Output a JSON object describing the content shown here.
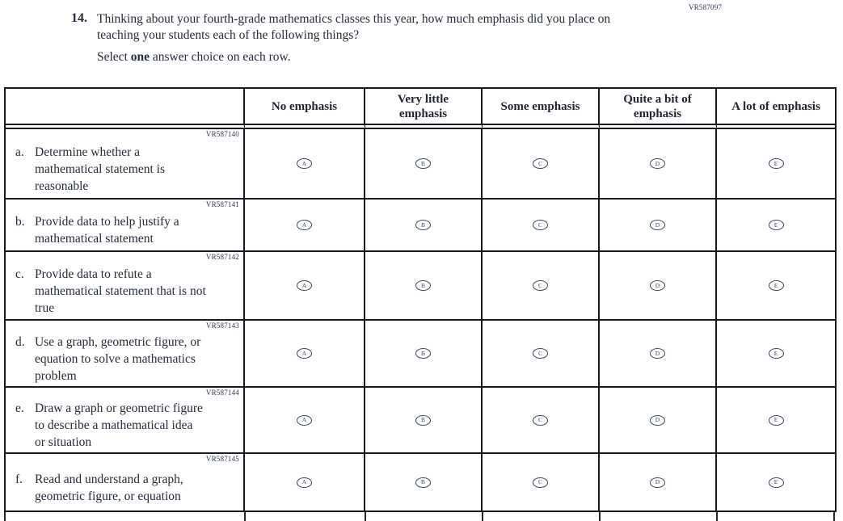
{
  "page": {
    "code": "VR587097"
  },
  "question": {
    "number": "14.",
    "text": "Thinking about your fourth-grade mathematics classes this year, how much emphasis did you place on teaching your students each of the following things?",
    "instruction_prefix": "Select ",
    "instruction_bold": "one",
    "instruction_suffix": " answer choice on each row."
  },
  "table": {
    "columns": [
      "No emphasis",
      "Very little emphasis",
      "Some emphasis",
      "Quite a bit of emphasis",
      "A lot of emphasis"
    ],
    "option_letters": [
      "A",
      "B",
      "C",
      "D",
      "E"
    ],
    "rows": [
      {
        "code": "VR587140",
        "label": "a.",
        "text": "Determine whether a mathematical statement is reasonable"
      },
      {
        "code": "VR587141",
        "label": "b.",
        "text": "Provide data to help justify a mathematical statement"
      },
      {
        "code": "VR587142",
        "label": "c.",
        "text": "Provide data to refute a mathematical statement that is not true"
      },
      {
        "code": "VR587143",
        "label": "d.",
        "text": "Use a graph, geometric figure, or equation to solve a mathematics problem"
      },
      {
        "code": "VR587144",
        "label": "e.",
        "text": "Draw a graph or geometric figure to describe a mathematical idea or situation"
      },
      {
        "code": "VR587145",
        "label": "f.",
        "text": "Read and understand a graph, geometric figure, or equation"
      }
    ]
  },
  "colors": {
    "ink": "#242b3a",
    "border": "#181a20",
    "code_ink": "#2c3650"
  }
}
